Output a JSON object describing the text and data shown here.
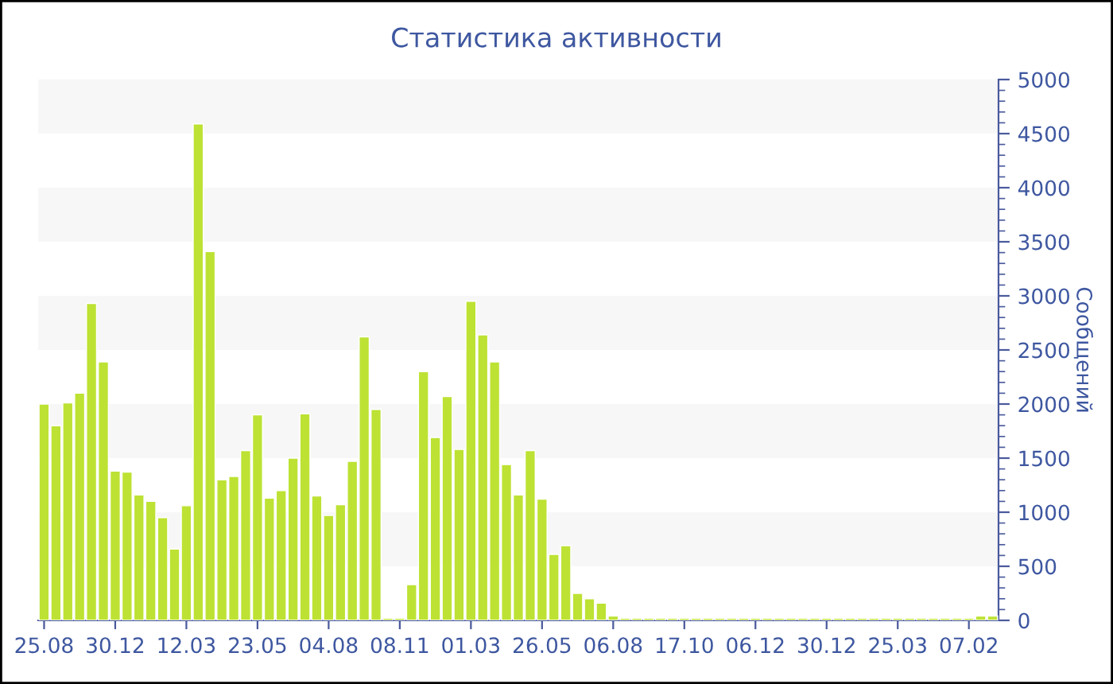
{
  "chart_data": {
    "type": "bar",
    "title": "Статистика активности",
    "ylabel": "Сообщений",
    "categories": [
      "25.08",
      null,
      null,
      null,
      null,
      null,
      "30.12",
      null,
      null,
      null,
      null,
      null,
      "12.03",
      null,
      null,
      null,
      null,
      null,
      "23.05",
      null,
      null,
      null,
      null,
      null,
      "04.08",
      null,
      null,
      null,
      null,
      null,
      "08.11",
      null,
      null,
      null,
      null,
      null,
      "01.03",
      null,
      null,
      null,
      null,
      null,
      "26.05",
      null,
      null,
      null,
      null,
      null,
      "06.08",
      null,
      null,
      null,
      null,
      null,
      "17.10",
      null,
      null,
      null,
      null,
      null,
      "06.12",
      null,
      null,
      null,
      null,
      null,
      "30.12",
      null,
      null,
      null,
      null,
      null,
      "25.03",
      null,
      null,
      null,
      null,
      null,
      "07.02",
      null,
      null
    ],
    "values": [
      2000,
      1800,
      2010,
      2100,
      2930,
      2390,
      1380,
      1370,
      1160,
      1100,
      950,
      660,
      1060,
      4590,
      3410,
      1300,
      1330,
      1570,
      1900,
      1130,
      1200,
      1500,
      1910,
      1150,
      970,
      1070,
      1470,
      2620,
      1950,
      20,
      20,
      330,
      2300,
      1690,
      2070,
      1580,
      2950,
      2640,
      2390,
      1440,
      1160,
      1570,
      1120,
      610,
      690,
      250,
      200,
      160,
      40,
      20,
      20,
      20,
      20,
      20,
      20,
      20,
      20,
      20,
      20,
      20,
      20,
      20,
      20,
      20,
      20,
      20,
      20,
      20,
      20,
      20,
      20,
      20,
      20,
      20,
      20,
      20,
      20,
      20,
      20,
      40,
      40
    ],
    "color": "#bde234",
    "ylim": [
      0,
      5000
    ],
    "yticks": [
      0,
      {
        "value": 100,
        "label": null
      },
      {
        "value": 200,
        "label": null
      },
      {
        "value": 300,
        "label": null
      },
      {
        "value": 400,
        "label": null
      },
      500,
      {
        "value": 600,
        "label": null
      },
      {
        "value": 700,
        "label": null
      },
      {
        "value": 800,
        "label": null
      },
      {
        "value": 900,
        "label": null
      },
      1000,
      {
        "value": 1100,
        "label": null
      },
      {
        "value": 1200,
        "label": null
      },
      {
        "value": 1300,
        "label": null
      },
      {
        "value": 1400,
        "label": null
      },
      1500,
      {
        "value": 1600,
        "label": null
      },
      {
        "value": 1700,
        "label": null
      },
      {
        "value": 1800,
        "label": null
      },
      {
        "value": 1900,
        "label": null
      },
      2000,
      {
        "value": 2100,
        "label": null
      },
      {
        "value": 2200,
        "label": null
      },
      {
        "value": 2300,
        "label": null
      },
      {
        "value": 2400,
        "label": null
      },
      2500,
      {
        "value": 2600,
        "label": null
      },
      {
        "value": 2700,
        "label": null
      },
      {
        "value": 2800,
        "label": null
      },
      {
        "value": 2900,
        "label": null
      },
      3000,
      {
        "value": 3100,
        "label": null
      },
      {
        "value": 3200,
        "label": null
      },
      {
        "value": 3300,
        "label": null
      },
      {
        "value": 3400,
        "label": null
      },
      3500,
      {
        "value": 3600,
        "label": null
      },
      {
        "value": 3700,
        "label": null
      },
      {
        "value": 3800,
        "label": null
      },
      {
        "value": 3900,
        "label": null
      },
      4000,
      {
        "value": 4100,
        "label": null
      },
      {
        "value": 4200,
        "label": null
      },
      {
        "value": 4300,
        "label": null
      },
      {
        "value": 4400,
        "label": null
      },
      4500,
      {
        "value": 4600,
        "label": null
      },
      {
        "value": 4700,
        "label": null
      },
      {
        "value": 4800,
        "label": null
      },
      {
        "value": 4900,
        "label": null
      },
      5000
    ],
    "bands": [
      {
        "axis": "y",
        "from": 500,
        "to": 1000,
        "color": "#f7f7f7"
      },
      {
        "axis": "y",
        "from": 1500,
        "to": 2000,
        "color": "#f7f7f7"
      },
      {
        "axis": "y",
        "from": 2500,
        "to": 3000,
        "color": "#f7f7f7"
      },
      {
        "axis": "y",
        "from": 3500,
        "to": 4000,
        "color": "#f7f7f7"
      },
      {
        "axis": "y",
        "from": 4500,
        "to": 5000,
        "color": "#f7f7f7"
      }
    ],
    "grid": false,
    "legend": false
  }
}
